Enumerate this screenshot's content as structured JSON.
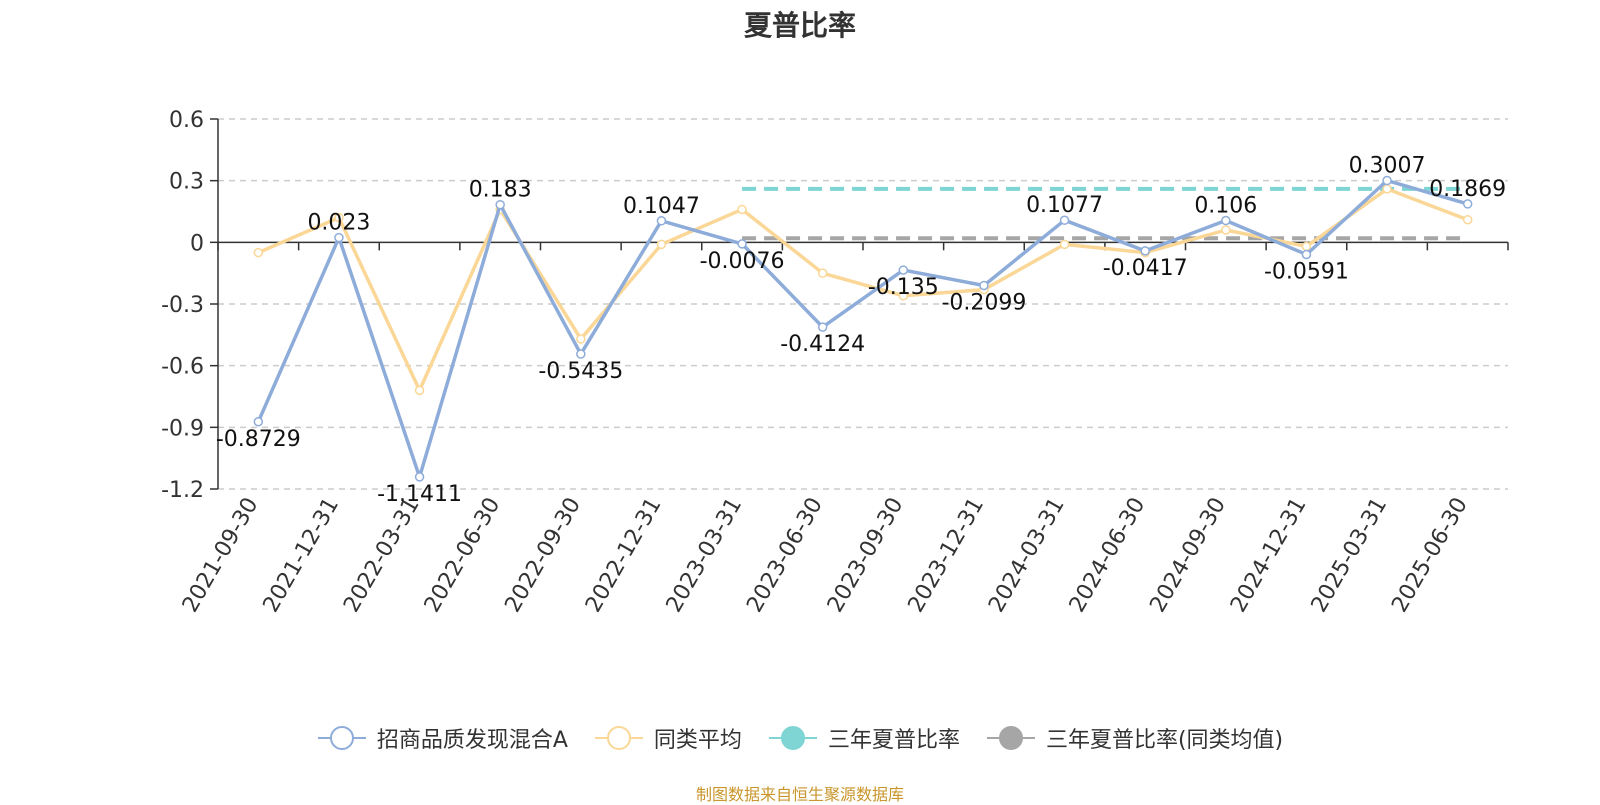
{
  "title": "夏普比率",
  "footer": "制图数据来自恒生聚源数据库",
  "chart_data": {
    "type": "line",
    "x": [
      "2021-09-30",
      "2021-12-31",
      "2022-03-31",
      "2022-06-30",
      "2022-09-30",
      "2022-12-31",
      "2023-03-31",
      "2023-06-30",
      "2023-09-30",
      "2023-12-31",
      "2024-03-31",
      "2024-06-30",
      "2024-09-30",
      "2024-12-31",
      "2025-03-31",
      "2025-06-30"
    ],
    "ylim": [
      -1.2,
      0.6
    ],
    "yticks": [
      "0.6",
      "0.3",
      "0",
      "-0.3",
      "-0.6",
      "-0.9",
      "-1.2"
    ],
    "grid": true,
    "legend_position": "bottom",
    "series": [
      {
        "name": "招商品质发现混合A",
        "color": "#8eacd9",
        "values": [
          -0.8729,
          0.023,
          -1.1411,
          0.183,
          -0.5435,
          0.1047,
          -0.0076,
          -0.4124,
          -0.135,
          -0.2099,
          0.1077,
          -0.0417,
          0.106,
          -0.0591,
          0.3007,
          0.1869
        ],
        "labels": [
          "-0.8729",
          "0.023",
          "-1.1411",
          "0.183",
          "-0.5435",
          "0.1047",
          "-0.0076",
          "-0.4124",
          "-0.135",
          "-0.2099",
          "0.1077",
          "-0.0417",
          "0.106",
          "-0.0591",
          "0.3007",
          "0.1869"
        ]
      },
      {
        "name": "同类平均",
        "color": "#fad796",
        "values": [
          -0.05,
          0.12,
          -0.72,
          0.16,
          -0.47,
          -0.01,
          0.16,
          -0.15,
          -0.26,
          -0.23,
          -0.01,
          -0.05,
          0.06,
          -0.02,
          0.26,
          0.11
        ]
      },
      {
        "name": "三年夏普比率",
        "color": "#7fd4d4",
        "line_style": "dashed",
        "from": "2023-03-31",
        "to": "2025-06-30",
        "value": 0.26
      },
      {
        "name": "三年夏普比率(同类均值)",
        "color": "#a6a6a6",
        "line_style": "dashed",
        "from": "2023-03-31",
        "to": "2025-06-30",
        "value": 0.02
      }
    ]
  }
}
